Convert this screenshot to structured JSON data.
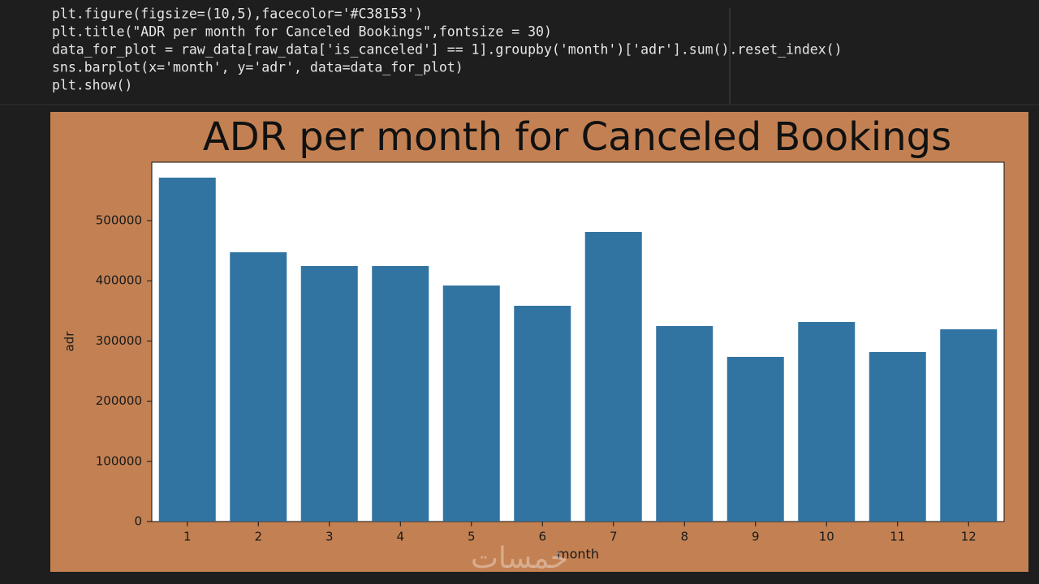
{
  "code_lines": [
    "plt.figure(figsize=(10,5),facecolor='#C38153')",
    "plt.title(\"ADR per month for Canceled Bookings\",fontsize = 30)",
    "data_for_plot = raw_data[raw_data['is_canceled'] == 1].groupby('month')['adr'].sum().reset_index()",
    "sns.barplot(x='month', y='adr', data=data_for_plot)",
    "plt.show()"
  ],
  "watermark": "خمسات",
  "chart_data": {
    "type": "bar",
    "title": "ADR per month for Canceled Bookings",
    "x_label": "month",
    "y_label": "adr",
    "categories": [
      1,
      2,
      3,
      4,
      5,
      6,
      7,
      8,
      9,
      10,
      11,
      12
    ],
    "values": [
      571400,
      447400,
      424500,
      424500,
      392200,
      358500,
      481100,
      324800,
      273600,
      331500,
      281700,
      319400
    ],
    "color": "#3274a1",
    "ylim": [
      0,
      597000
    ],
    "yticks": [
      0,
      100000,
      200000,
      300000,
      400000,
      500000
    ],
    "grid": false
  }
}
